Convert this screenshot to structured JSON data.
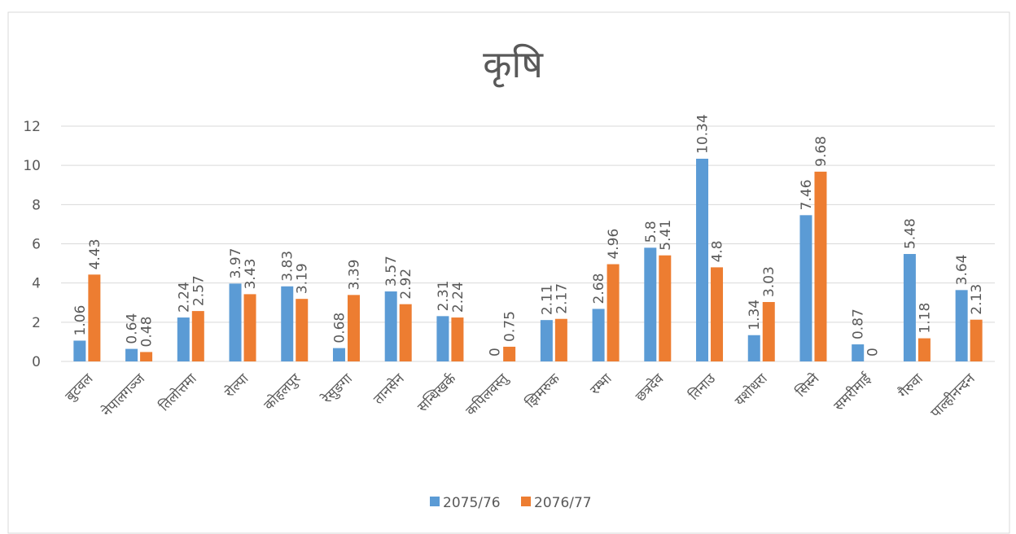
{
  "chart_data": {
    "type": "bar",
    "title": "कृषि",
    "categories": [
      "बुटवल",
      "नेपालगञ्ज",
      "तिलोत्तमा",
      "रोल्पा",
      "कोहलपुर",
      "रेसुङगा",
      "तानसेन",
      "सन्धिखर्क",
      "कपिलवस्तु",
      "झिमरुक",
      "रम्भा",
      "छत्रदेव",
      "तिनाउ",
      "यशोधरा",
      "सिस्ने",
      "समरीमाई",
      "गैरुवा",
      "पाल्हीनन्दन"
    ],
    "series": [
      {
        "name": "2075/76",
        "color": "#5b9bd5",
        "values": [
          1.06,
          0.64,
          2.24,
          3.97,
          3.83,
          0.68,
          3.57,
          2.31,
          0,
          2.11,
          2.68,
          5.8,
          10.34,
          1.34,
          7.46,
          0.87,
          5.48,
          3.64
        ]
      },
      {
        "name": "2076/77",
        "color": "#ed7d31",
        "values": [
          4.43,
          0.48,
          2.57,
          3.43,
          3.19,
          3.39,
          2.92,
          2.24,
          0.75,
          2.17,
          4.96,
          5.41,
          4.8,
          3.03,
          9.68,
          0,
          1.18,
          2.13
        ]
      }
    ],
    "ylim": [
      0,
      12
    ],
    "yticks": [
      0,
      2,
      4,
      6,
      8,
      10,
      12
    ],
    "grid": true,
    "legend": "bottom"
  }
}
